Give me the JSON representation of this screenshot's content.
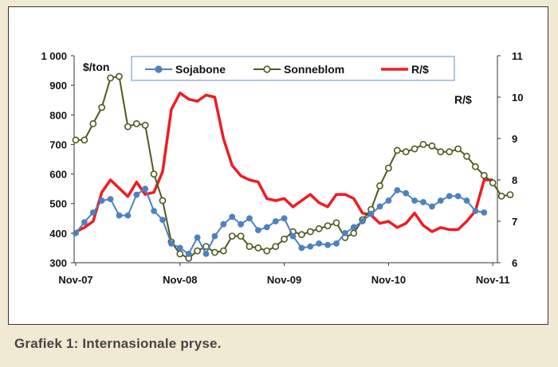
{
  "caption": "Grafiek 1: Internasionale pryse.",
  "chart_data": {
    "type": "line",
    "title": "",
    "left_unit": "$/ton",
    "right_unit": "R/$",
    "x_tick_labels": [
      "Nov-07",
      "Nov-08",
      "Nov-09",
      "Nov-10",
      "Nov-11"
    ],
    "x_tick_index": [
      0,
      12,
      24,
      36,
      48
    ],
    "ylim_left": [
      300,
      1000
    ],
    "yticks_left": [
      "300",
      "400",
      "500",
      "600",
      "700",
      "800",
      "900",
      "1 000"
    ],
    "ylim_right": [
      6,
      11
    ],
    "yticks_right": [
      "6",
      "7",
      "8",
      "9",
      "10",
      "11"
    ],
    "legend_position": "top",
    "series": [
      {
        "name": "Sojabone",
        "axis": "left",
        "color": "#4f81bd",
        "marker": "filled-circle",
        "values": [
          400,
          437,
          470,
          510,
          515,
          460,
          460,
          530,
          550,
          475,
          445,
          365,
          350,
          330,
          385,
          330,
          390,
          430,
          455,
          430,
          450,
          410,
          420,
          440,
          450,
          390,
          350,
          355,
          365,
          360,
          365,
          400,
          420,
          440,
          465,
          490,
          510,
          545,
          535,
          510,
          505,
          490,
          510,
          525,
          525,
          510,
          475,
          470
        ]
      },
      {
        "name": "Sonneblom",
        "axis": "left",
        "color": "#4d5a1f",
        "marker": "open-circle",
        "values": [
          715,
          715,
          770,
          825,
          925,
          930,
          760,
          770,
          765,
          600,
          510,
          370,
          330,
          315,
          340,
          355,
          335,
          340,
          390,
          390,
          355,
          350,
          340,
          355,
          380,
          405,
          395,
          405,
          415,
          425,
          435,
          385,
          400,
          445,
          480,
          560,
          620,
          680,
          675,
          685,
          700,
          695,
          675,
          675,
          685,
          660,
          625,
          595,
          570,
          525,
          530
        ]
      },
      {
        "name": "R/$",
        "axis": "right",
        "color": "#ee1c25",
        "marker": "none",
        "values": [
          6.75,
          6.85,
          7.0,
          7.7,
          8.0,
          7.8,
          7.6,
          7.95,
          7.65,
          7.7,
          8.2,
          9.7,
          10.1,
          9.95,
          9.9,
          10.05,
          10.0,
          9.0,
          8.35,
          8.1,
          8.0,
          7.95,
          7.55,
          7.5,
          7.55,
          7.35,
          7.5,
          7.65,
          7.45,
          7.35,
          7.65,
          7.65,
          7.55,
          7.2,
          7.15,
          6.95,
          7.0,
          6.85,
          6.95,
          7.2,
          6.9,
          6.75,
          6.85,
          6.8,
          6.8,
          7.0,
          7.25,
          8.0,
          8.0
        ]
      }
    ]
  }
}
